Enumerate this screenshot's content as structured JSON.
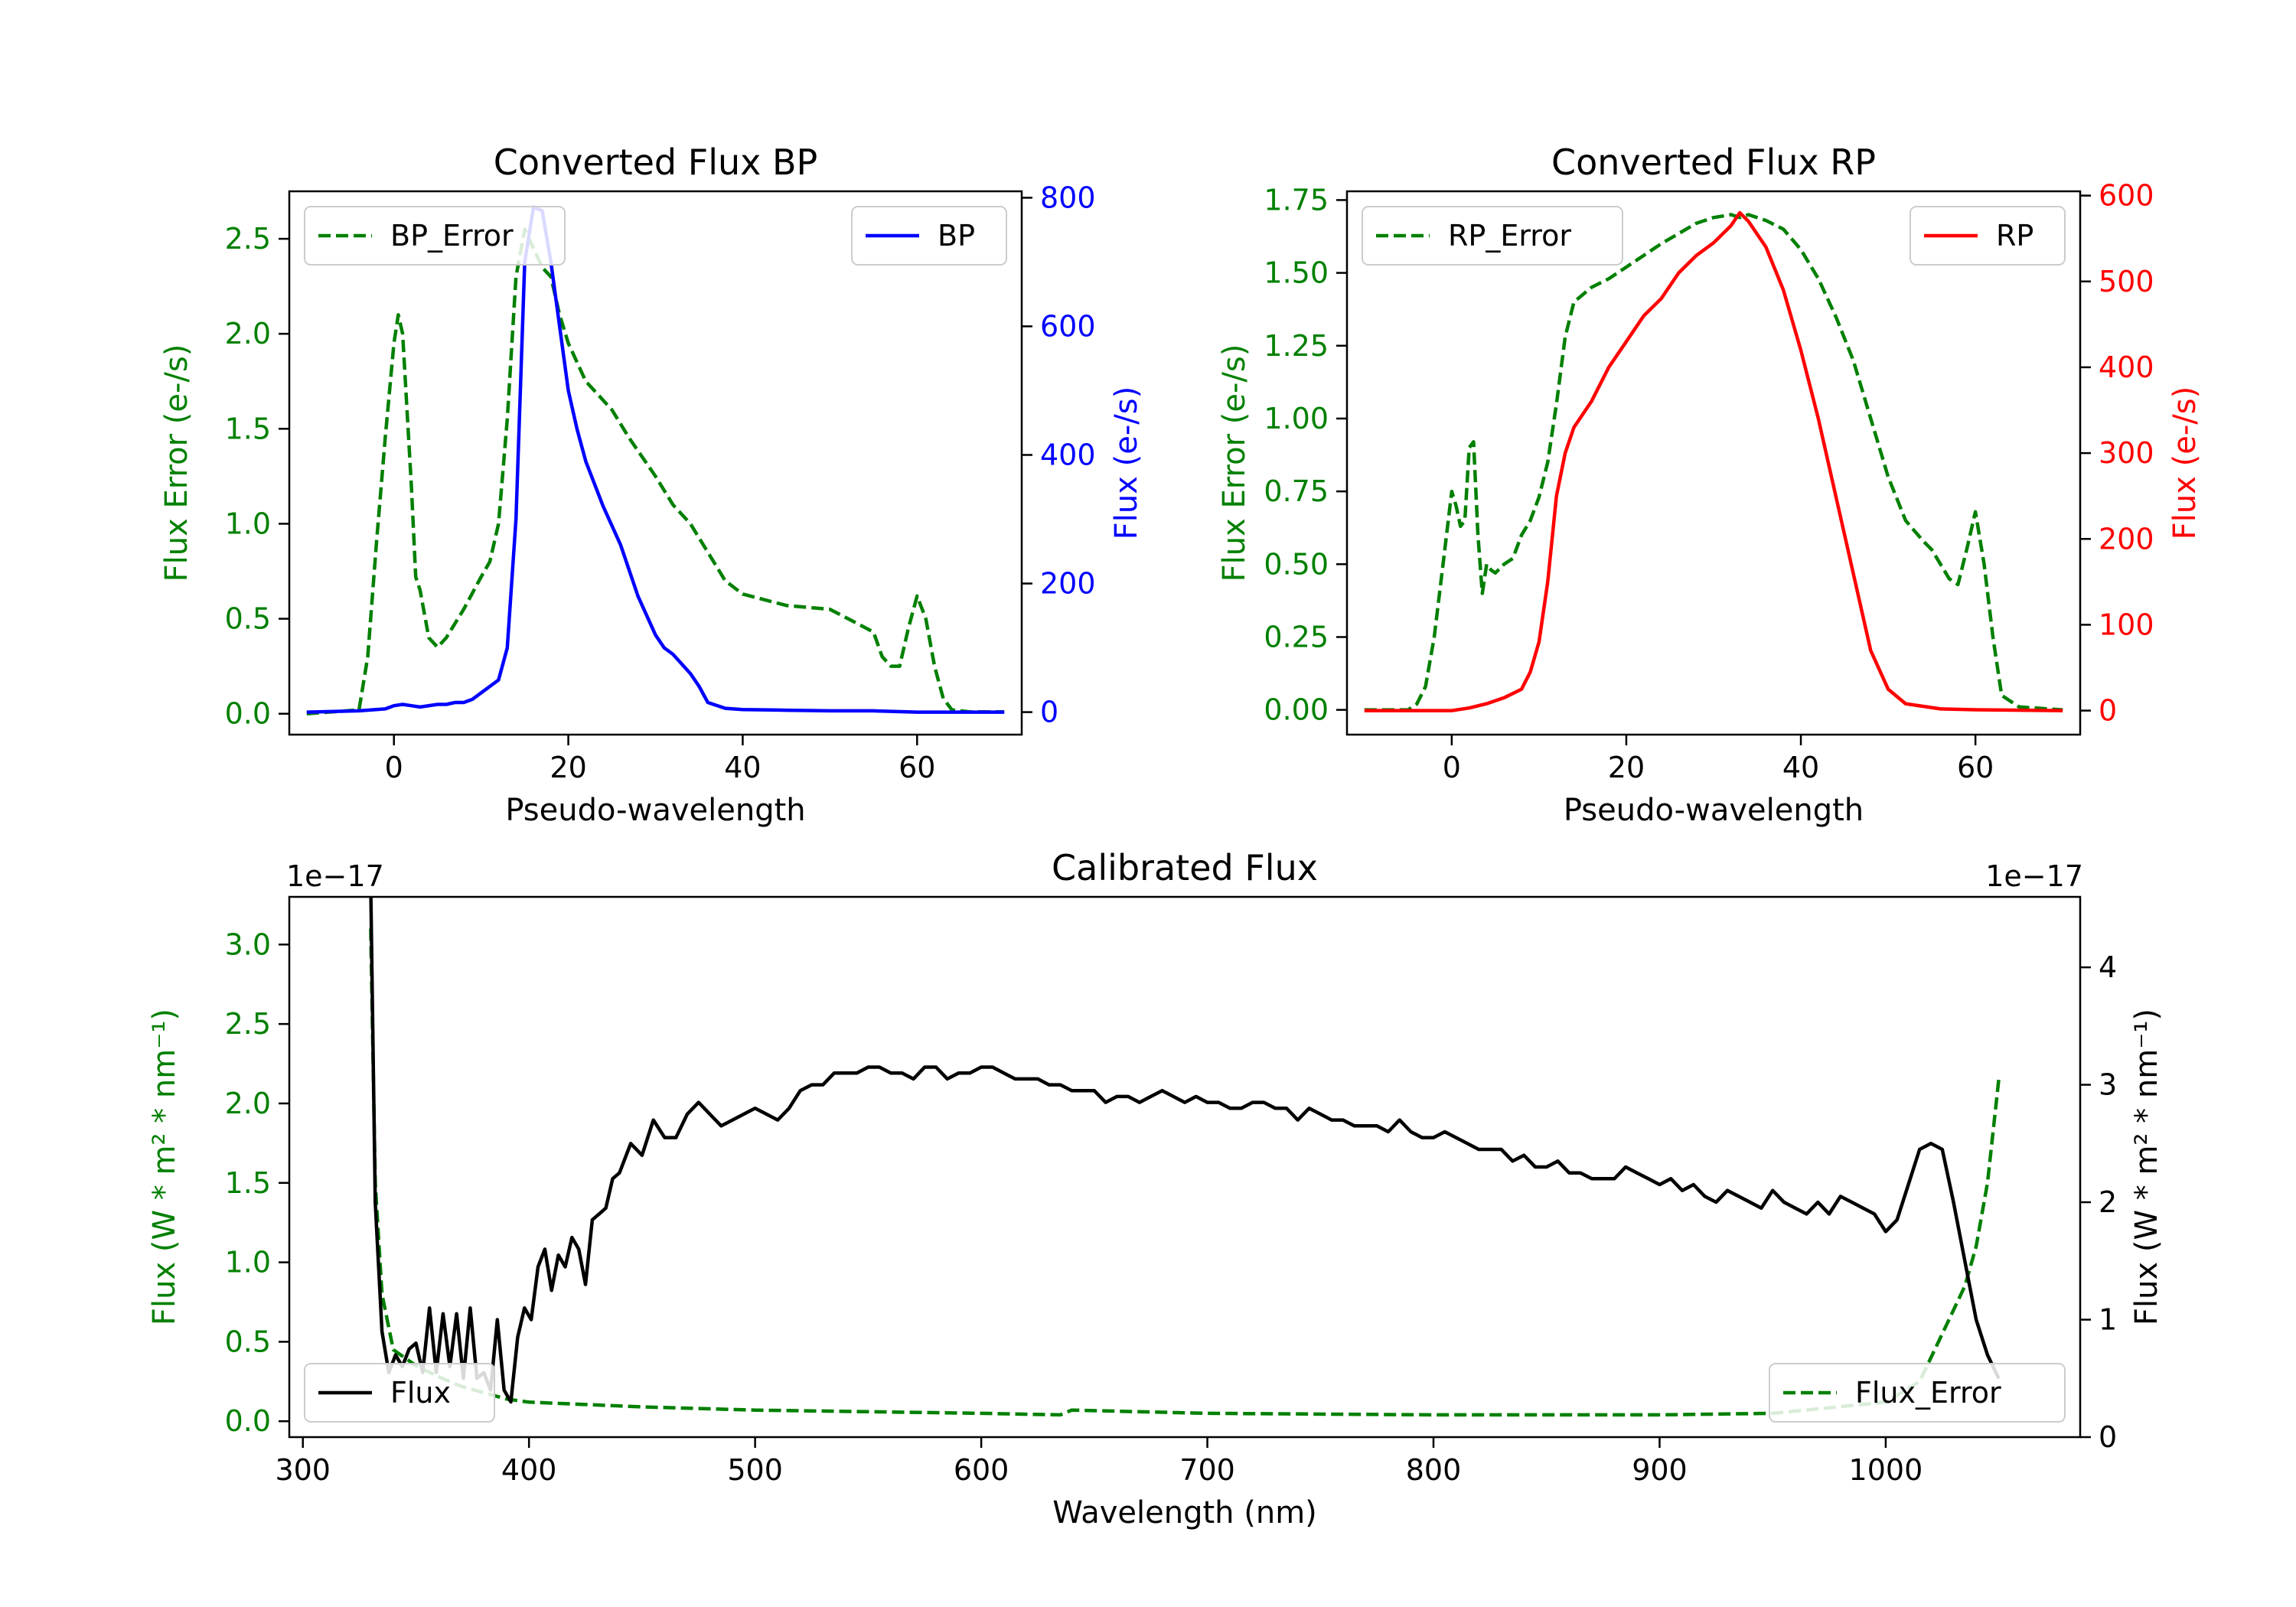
{
  "chart_data": [
    {
      "type": "line",
      "title": "Converted Flux BP",
      "xlabel": "Pseudo-wavelength",
      "xlim": [
        -12,
        72
      ],
      "xticks": [
        0,
        20,
        40,
        60
      ],
      "left_axis": {
        "label": "Flux Error (e-/s)",
        "color": "#008000",
        "ylim": [
          -0.11,
          2.75
        ],
        "ticks": [
          "0.0",
          "0.5",
          "1.0",
          "1.5",
          "2.0",
          "2.5"
        ],
        "tick_values": [
          0,
          0.5,
          1.0,
          1.5,
          2.0,
          2.5
        ]
      },
      "right_axis": {
        "label": "Flux (e-/s)",
        "color": "#0000ff",
        "ylim": [
          -35,
          810
        ],
        "ticks": [
          "0",
          "200",
          "400",
          "600",
          "800"
        ],
        "tick_values": [
          0,
          200,
          400,
          600,
          800
        ]
      },
      "series": [
        {
          "name": "BP_Error",
          "axis": "left",
          "color": "#008000",
          "style": "dashed",
          "x": [
            -10,
            -4,
            -3,
            -2,
            -1,
            0,
            0.5,
            1,
            2,
            2.5,
            3,
            4,
            5,
            6,
            8,
            10,
            11,
            12,
            13,
            14,
            15,
            16,
            17,
            18,
            19,
            20,
            22,
            23,
            25,
            27,
            30,
            32,
            34,
            36,
            38,
            40,
            45,
            50,
            55,
            56,
            57,
            58,
            59,
            60,
            61,
            62,
            63,
            64,
            66,
            70
          ],
          "y": [
            0,
            0.02,
            0.3,
            0.9,
            1.45,
            1.95,
            2.1,
            2.0,
            1.2,
            0.72,
            0.65,
            0.4,
            0.35,
            0.4,
            0.55,
            0.72,
            0.8,
            1.0,
            1.55,
            2.3,
            2.55,
            2.45,
            2.35,
            2.3,
            2.1,
            1.95,
            1.75,
            1.7,
            1.6,
            1.45,
            1.25,
            1.1,
            1.0,
            0.85,
            0.7,
            0.63,
            0.57,
            0.55,
            0.43,
            0.3,
            0.25,
            0.25,
            0.45,
            0.62,
            0.5,
            0.25,
            0.08,
            0.02,
            0.01,
            0.01
          ]
        },
        {
          "name": "BP",
          "axis": "right",
          "color": "#0000ff",
          "style": "solid",
          "x": [
            -10,
            -4,
            -1,
            0,
            1,
            2,
            3,
            5,
            6,
            7,
            8,
            9,
            10,
            11,
            12,
            13,
            14,
            15,
            16,
            17,
            18,
            19,
            20,
            21,
            22,
            24,
            26,
            28,
            30,
            31,
            32,
            34,
            35,
            36,
            38,
            40,
            45,
            50,
            55,
            60,
            62,
            65,
            70
          ],
          "y": [
            0,
            2,
            5,
            10,
            12,
            10,
            8,
            12,
            12,
            15,
            15,
            20,
            30,
            40,
            50,
            100,
            300,
            700,
            785,
            780,
            700,
            600,
            500,
            440,
            390,
            320,
            260,
            180,
            120,
            100,
            90,
            60,
            40,
            15,
            6,
            4,
            3,
            2,
            2,
            0,
            0,
            0,
            0
          ]
        }
      ],
      "legend": [
        {
          "label": "BP_Error",
          "position": "upper left"
        },
        {
          "label": "BP",
          "position": "upper right"
        }
      ]
    },
    {
      "type": "line",
      "title": "Converted Flux RP",
      "xlabel": "Pseudo-wavelength",
      "xlim": [
        -12,
        72
      ],
      "xticks": [
        0,
        20,
        40,
        60
      ],
      "left_axis": {
        "label": "Flux Error (e-/s)",
        "color": "#008000",
        "ylim": [
          -0.085,
          1.78
        ],
        "ticks": [
          "0.00",
          "0.25",
          "0.50",
          "0.75",
          "1.00",
          "1.25",
          "1.50",
          "1.75"
        ],
        "tick_values": [
          0,
          0.25,
          0.5,
          0.75,
          1.0,
          1.25,
          1.5,
          1.75
        ]
      },
      "right_axis": {
        "label": "Flux (e-/s)",
        "color": "#ff0000",
        "ylim": [
          -28,
          605
        ],
        "ticks": [
          "0",
          "100",
          "200",
          "300",
          "400",
          "500",
          "600"
        ],
        "tick_values": [
          0,
          100,
          200,
          300,
          400,
          500,
          600
        ]
      },
      "series": [
        {
          "name": "RP_Error",
          "axis": "left",
          "color": "#008000",
          "style": "dashed",
          "x": [
            -10,
            -5,
            -4,
            -3,
            -2,
            -1,
            0,
            0.5,
            1,
            1.5,
            2,
            2.5,
            3,
            3.5,
            4,
            4.5,
            5,
            6,
            7,
            8,
            9,
            10,
            11,
            12,
            13,
            14,
            16,
            18,
            20,
            24,
            28,
            30,
            32,
            33,
            34,
            36,
            38,
            40,
            42,
            44,
            46,
            48,
            50,
            52,
            54,
            55,
            56,
            57,
            58,
            59,
            60,
            61,
            62,
            63,
            65,
            70
          ],
          "y": [
            0,
            0,
            0.02,
            0.08,
            0.25,
            0.5,
            0.75,
            0.7,
            0.63,
            0.65,
            0.9,
            0.92,
            0.6,
            0.4,
            0.5,
            0.48,
            0.47,
            0.5,
            0.52,
            0.6,
            0.65,
            0.73,
            0.85,
            1.05,
            1.28,
            1.4,
            1.45,
            1.48,
            1.52,
            1.6,
            1.67,
            1.69,
            1.7,
            1.69,
            1.7,
            1.68,
            1.65,
            1.58,
            1.48,
            1.35,
            1.2,
            1.0,
            0.8,
            0.65,
            0.58,
            0.55,
            0.5,
            0.45,
            0.43,
            0.55,
            0.68,
            0.5,
            0.25,
            0.05,
            0.01,
            0
          ]
        },
        {
          "name": "RP",
          "axis": "right",
          "color": "#ff0000",
          "style": "solid",
          "x": [
            -10,
            -3,
            0,
            2,
            4,
            6,
            8,
            9,
            10,
            11,
            12,
            13,
            14,
            16,
            18,
            20,
            22,
            24,
            26,
            28,
            30,
            32,
            33,
            34,
            36,
            38,
            40,
            42,
            44,
            46,
            48,
            50,
            52,
            54,
            56,
            60,
            70
          ],
          "y": [
            0,
            0,
            0,
            3,
            8,
            15,
            25,
            45,
            80,
            150,
            250,
            300,
            330,
            360,
            400,
            430,
            460,
            480,
            510,
            530,
            545,
            565,
            580,
            570,
            540,
            490,
            420,
            340,
            250,
            160,
            70,
            25,
            8,
            5,
            2,
            1,
            0
          ]
        }
      ],
      "legend": [
        {
          "label": "RP_Error",
          "position": "upper left"
        },
        {
          "label": "RP",
          "position": "upper right"
        }
      ]
    },
    {
      "type": "line",
      "title": "Calibrated Flux",
      "xlabel": "Wavelength (nm)",
      "xlim": [
        294,
        1086
      ],
      "xticks": [
        300,
        400,
        500,
        600,
        700,
        800,
        900,
        1000
      ],
      "left_axis": {
        "label": "Flux (W * m$^2$ * nm$^{-1}$)",
        "label_text": "Flux (W * m² * nm⁻¹)",
        "color": "#008000",
        "offset_text": "1e−17",
        "ylim": [
          -0.1,
          3.3
        ],
        "ticks": [
          "0.0",
          "0.5",
          "1.0",
          "1.5",
          "2.0",
          "2.5",
          "3.0"
        ],
        "tick_values": [
          0,
          0.5,
          1.0,
          1.5,
          2.0,
          2.5,
          3.0
        ]
      },
      "right_axis": {
        "label_text": "Flux (W * m² * nm⁻¹)",
        "color": "#000000",
        "offset_text": "1e−17",
        "ylim": [
          0,
          4.6
        ],
        "ticks": [
          "0",
          "1",
          "2",
          "3",
          "4"
        ],
        "tick_values": [
          0,
          1,
          2,
          3,
          4
        ]
      },
      "series": [
        {
          "name": "Flux_Error",
          "axis": "left",
          "color": "#008000",
          "style": "dashed",
          "x": [
            330,
            332,
            335,
            340,
            350,
            360,
            370,
            380,
            390,
            400,
            450,
            500,
            550,
            600,
            635,
            640,
            700,
            800,
            900,
            950,
            1000,
            1015,
            1020,
            1025,
            1030,
            1035,
            1040,
            1045,
            1050
          ],
          "y": [
            3.1,
            1.5,
            0.8,
            0.45,
            0.35,
            0.28,
            0.22,
            0.18,
            0.14,
            0.12,
            0.09,
            0.07,
            0.06,
            0.05,
            0.04,
            0.07,
            0.05,
            0.04,
            0.04,
            0.05,
            0.12,
            0.25,
            0.4,
            0.55,
            0.7,
            0.85,
            1.1,
            1.5,
            2.15
          ]
        },
        {
          "name": "Flux",
          "axis": "right",
          "color": "#000000",
          "style": "solid",
          "x": [
            330,
            332,
            335,
            338,
            341,
            344,
            347,
            350,
            353,
            356,
            359,
            362,
            365,
            368,
            371,
            374,
            377,
            380,
            383,
            386,
            389,
            392,
            395,
            398,
            401,
            404,
            407,
            410,
            413,
            416,
            419,
            422,
            425,
            428,
            431,
            434,
            437,
            440,
            445,
            450,
            455,
            460,
            465,
            470,
            475,
            480,
            485,
            490,
            495,
            500,
            505,
            510,
            515,
            520,
            525,
            530,
            535,
            540,
            545,
            550,
            555,
            560,
            565,
            570,
            575,
            580,
            585,
            590,
            595,
            600,
            605,
            610,
            615,
            620,
            625,
            630,
            635,
            640,
            645,
            650,
            655,
            660,
            665,
            670,
            675,
            680,
            685,
            690,
            695,
            700,
            705,
            710,
            715,
            720,
            725,
            730,
            735,
            740,
            745,
            750,
            755,
            760,
            765,
            770,
            775,
            780,
            785,
            790,
            795,
            800,
            805,
            810,
            815,
            820,
            825,
            830,
            835,
            840,
            845,
            850,
            855,
            860,
            865,
            870,
            875,
            880,
            885,
            890,
            895,
            900,
            905,
            910,
            915,
            920,
            925,
            930,
            935,
            940,
            945,
            950,
            955,
            960,
            965,
            970,
            975,
            980,
            985,
            990,
            995,
            1000,
            1005,
            1010,
            1015,
            1020,
            1025,
            1030,
            1035,
            1040,
            1045,
            1050
          ],
          "y": [
            4.7,
            2.0,
            0.9,
            0.55,
            0.7,
            0.6,
            0.75,
            0.8,
            0.55,
            1.1,
            0.55,
            1.05,
            0.6,
            1.05,
            0.5,
            1.1,
            0.5,
            0.55,
            0.4,
            1.0,
            0.4,
            0.3,
            0.85,
            1.1,
            1.0,
            1.45,
            1.6,
            1.25,
            1.55,
            1.45,
            1.7,
            1.6,
            1.3,
            1.85,
            1.9,
            1.95,
            2.2,
            2.25,
            2.5,
            2.4,
            2.7,
            2.55,
            2.55,
            2.75,
            2.85,
            2.75,
            2.65,
            2.7,
            2.75,
            2.8,
            2.75,
            2.7,
            2.8,
            2.95,
            3.0,
            3.0,
            3.1,
            3.1,
            3.1,
            3.15,
            3.15,
            3.1,
            3.1,
            3.05,
            3.15,
            3.15,
            3.05,
            3.1,
            3.1,
            3.15,
            3.15,
            3.1,
            3.05,
            3.05,
            3.05,
            3.0,
            3.0,
            2.95,
            2.95,
            2.95,
            2.85,
            2.9,
            2.9,
            2.85,
            2.9,
            2.95,
            2.9,
            2.85,
            2.9,
            2.85,
            2.85,
            2.8,
            2.8,
            2.85,
            2.85,
            2.8,
            2.8,
            2.7,
            2.8,
            2.75,
            2.7,
            2.7,
            2.65,
            2.65,
            2.65,
            2.6,
            2.7,
            2.6,
            2.55,
            2.55,
            2.6,
            2.55,
            2.5,
            2.45,
            2.45,
            2.45,
            2.35,
            2.4,
            2.3,
            2.3,
            2.35,
            2.25,
            2.25,
            2.2,
            2.2,
            2.2,
            2.3,
            2.25,
            2.2,
            2.15,
            2.2,
            2.1,
            2.15,
            2.05,
            2.0,
            2.1,
            2.05,
            2.0,
            1.95,
            2.1,
            2.0,
            1.95,
            1.9,
            2.0,
            1.9,
            2.05,
            2.0,
            1.95,
            1.9,
            1.75,
            1.85,
            2.15,
            2.45,
            2.5,
            2.45,
            2.0,
            1.5,
            1.0,
            0.7,
            0.5
          ]
        }
      ],
      "legend": [
        {
          "label": "Flux",
          "position": "lower left"
        },
        {
          "label": "Flux_Error",
          "position": "lower right"
        }
      ]
    }
  ]
}
